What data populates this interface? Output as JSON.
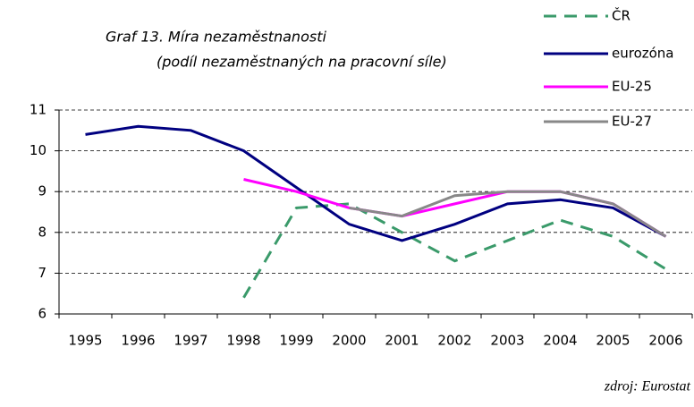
{
  "chart_data": {
    "type": "line",
    "title": "Graf 13. Míra nezaměstnanosti",
    "subtitle": "(podíl nezaměstnaných na pracovní síle)",
    "source": "zdroj: Eurostat",
    "categories": [
      "1995",
      "1996",
      "1997",
      "1998",
      "1999",
      "2000",
      "2001",
      "2002",
      "2003",
      "2004",
      "2005",
      "2006"
    ],
    "series": [
      {
        "name": "ČR",
        "color": "#3a9a6a",
        "style": "dashed",
        "values": [
          null,
          null,
          null,
          6.4,
          8.6,
          8.7,
          8.0,
          7.3,
          7.8,
          8.3,
          7.9,
          7.1
        ]
      },
      {
        "name": "eurozóna",
        "color": "#000080",
        "style": "solid",
        "values": [
          10.4,
          10.6,
          10.5,
          10.0,
          9.1,
          8.2,
          7.8,
          8.2,
          8.7,
          8.8,
          8.6,
          7.9
        ]
      },
      {
        "name": "EU-25",
        "color": "#ff00ff",
        "style": "solid",
        "values": [
          null,
          null,
          null,
          9.3,
          9.0,
          8.6,
          8.4,
          8.7,
          9.0,
          9.0,
          8.7,
          7.9
        ]
      },
      {
        "name": "EU-27",
        "color": "#888888",
        "style": "solid",
        "values": [
          null,
          null,
          null,
          null,
          null,
          8.6,
          8.4,
          8.9,
          9.0,
          9.0,
          8.7,
          7.9
        ]
      }
    ],
    "ylim": [
      6,
      11
    ],
    "yticks": [
      6,
      7,
      8,
      9,
      10,
      11
    ],
    "grid": true,
    "legend": "upper right"
  }
}
